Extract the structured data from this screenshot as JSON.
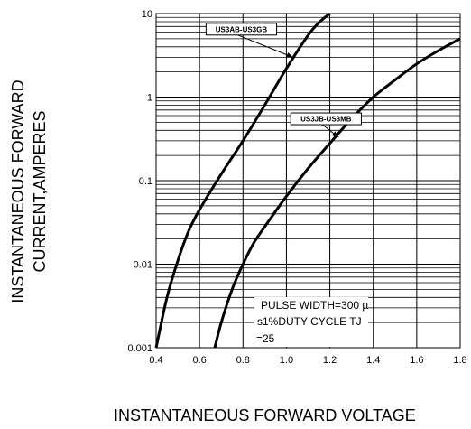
{
  "chart_data": {
    "type": "line",
    "title": "",
    "xlabel": "INSTANTANEOUS FORWARD VOLTAGE",
    "ylabel_lines": [
      "INSTANTANEOUS FORWARD",
      "CURRENT,AMPERES"
    ],
    "xlim": [
      0.4,
      1.8
    ],
    "ylim": [
      0.001,
      10
    ],
    "yscale": "log",
    "grid": true,
    "x_ticks": [
      0.4,
      0.6,
      0.8,
      1.0,
      1.2,
      1.4,
      1.6,
      1.8
    ],
    "x_tick_labels": [
      "0.4",
      "0.6",
      "0.8",
      "1.0",
      "1.2",
      "1.4",
      "1.6",
      "1.8"
    ],
    "y_ticks": [
      0.001,
      0.01,
      0.1,
      1,
      10
    ],
    "y_tick_labels": [
      "0.001",
      "0.01",
      "0.1",
      "1",
      "10"
    ],
    "series": [
      {
        "name": "US3AB-US3GB",
        "x": [
          0.4,
          0.45,
          0.5,
          0.55,
          0.6,
          0.7,
          0.8,
          0.9,
          1.0,
          1.1,
          1.15,
          1.2
        ],
        "y": [
          0.001,
          0.004,
          0.011,
          0.025,
          0.045,
          0.12,
          0.3,
          0.8,
          2.2,
          5.5,
          7.8,
          10
        ]
      },
      {
        "name": "US3JB-US3MB",
        "x": [
          0.67,
          0.7,
          0.75,
          0.8,
          0.85,
          0.9,
          1.0,
          1.1,
          1.2,
          1.3,
          1.4,
          1.5,
          1.6,
          1.7,
          1.8
        ],
        "y": [
          0.001,
          0.002,
          0.005,
          0.01,
          0.018,
          0.028,
          0.065,
          0.14,
          0.28,
          0.55,
          1.0,
          1.6,
          2.5,
          3.6,
          5.0
        ]
      }
    ],
    "annotations": [
      {
        "text": "US3AB-US3GB",
        "target_series": 0,
        "target": [
          1.03,
          3.0
        ],
        "box_x": 0.63,
        "box_y": 6.5
      },
      {
        "text": "US3JB-US3MB",
        "target_series": 1,
        "target": [
          1.24,
          0.33
        ],
        "box_x": 1.02,
        "box_y": 0.55
      }
    ],
    "note_lines": [
      "PULSE WIDTH=300 µ",
      "s1%DUTY CYCLE TJ",
      "=25"
    ]
  }
}
